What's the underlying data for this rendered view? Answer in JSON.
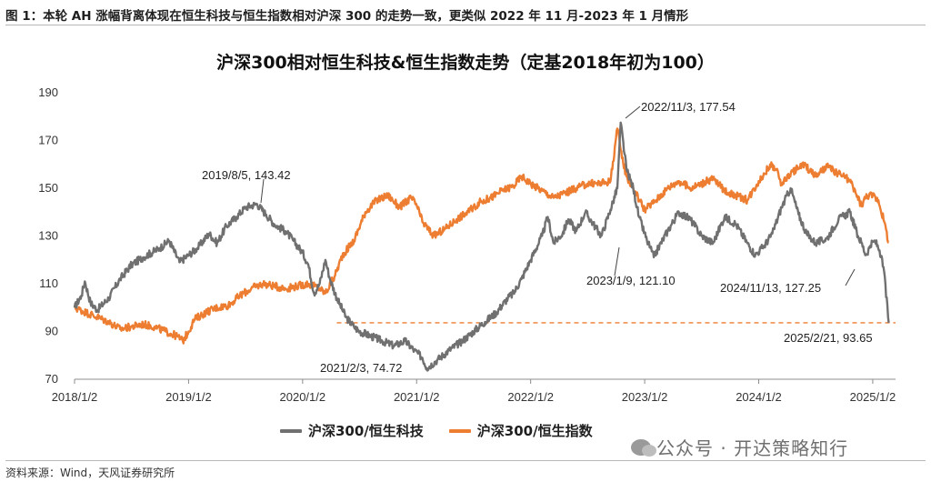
{
  "caption": "图 1：本轮 AH 涨幅背离体现在恒生科技与恒生指数相对沪深 300 的走势一致，更类似 2022 年 11 月-2023 年 1 月情形",
  "watermark": "公众号 · 开达策略知行",
  "source": "资料来源：Wind，天风证券研究所",
  "colors": {
    "tech": "#707070",
    "hsi": "#ED7D31",
    "refline": "#ED7D31"
  },
  "chart_data": {
    "type": "line",
    "title": "沪深300相对恒生科技&恒生指数走势（定基2018年初为100）",
    "ylim": [
      70,
      190
    ],
    "yticks": [
      70,
      90,
      110,
      130,
      150,
      170,
      190
    ],
    "xlim": [
      2018.0,
      2025.2
    ],
    "xticks": [
      {
        "label": "2018/1/2",
        "x": 2018.0
      },
      {
        "label": "2019/1/2",
        "x": 2019.0
      },
      {
        "label": "2020/1/2",
        "x": 2020.0
      },
      {
        "label": "2021/1/2",
        "x": 2021.0
      },
      {
        "label": "2022/1/2",
        "x": 2022.0
      },
      {
        "label": "2023/1/2",
        "x": 2023.0
      },
      {
        "label": "2024/1/2",
        "x": 2024.0
      },
      {
        "label": "2025/1/2",
        "x": 2025.0
      }
    ],
    "reference_line": {
      "y": 93.65,
      "x_from": 2020.3,
      "x_to": 2025.2
    },
    "series": [
      {
        "name": "沪深300/恒生科技",
        "color": "#707070",
        "x": [
          2018.0,
          2018.06,
          2018.09,
          2018.14,
          2018.2,
          2018.3,
          2018.4,
          2018.5,
          2018.6,
          2018.75,
          2018.83,
          2018.92,
          2019.0,
          2019.08,
          2019.18,
          2019.25,
          2019.33,
          2019.42,
          2019.5,
          2019.6,
          2019.68,
          2019.75,
          2019.85,
          2019.92,
          2020.0,
          2020.05,
          2020.1,
          2020.15,
          2020.2,
          2020.24,
          2020.3,
          2020.38,
          2020.45,
          2020.5,
          2020.6,
          2020.7,
          2020.8,
          2020.9,
          2020.98,
          2021.05,
          2021.09,
          2021.18,
          2021.28,
          2021.4,
          2021.5,
          2021.6,
          2021.7,
          2021.8,
          2021.85,
          2021.92,
          2022.0,
          2022.1,
          2022.15,
          2022.2,
          2022.28,
          2022.33,
          2022.4,
          2022.48,
          2022.55,
          2022.62,
          2022.7,
          2022.76,
          2022.79,
          2022.84,
          2022.9,
          2022.95,
          2023.02,
          2023.05,
          2023.08,
          2023.12,
          2023.2,
          2023.3,
          2023.4,
          2023.5,
          2023.6,
          2023.7,
          2023.8,
          2023.9,
          2023.97,
          2024.05,
          2024.12,
          2024.2,
          2024.28,
          2024.35,
          2024.42,
          2024.5,
          2024.6,
          2024.7,
          2024.8,
          2024.85,
          2024.87,
          2024.9,
          2024.94,
          2024.98,
          2025.02,
          2025.06,
          2025.1,
          2025.14
        ],
        "values": [
          100,
          105,
          111,
          102,
          99,
          104,
          112,
          118,
          121,
          125,
          128,
          119,
          122,
          125,
          131,
          127,
          134,
          138,
          142,
          143.4,
          139,
          135,
          132,
          128,
          123,
          118,
          106,
          110,
          120,
          112,
          104,
          96,
          92,
          90,
          88,
          86,
          84,
          86,
          82,
          79,
          74.7,
          78,
          82,
          86,
          90,
          94,
          98,
          104,
          106,
          112,
          120,
          130,
          138,
          127,
          131,
          137,
          132,
          140,
          135,
          130,
          141,
          150,
          177.5,
          158,
          150,
          138,
          128,
          125,
          121.1,
          125,
          132,
          140,
          137,
          130,
          127,
          138,
          135,
          127,
          122,
          126,
          131,
          142,
          150,
          139,
          131,
          127,
          129,
          137,
          140,
          133,
          130,
          127.3,
          122,
          126,
          128,
          124,
          115,
          93.65
        ]
      },
      {
        "name": "沪深300/恒生指数",
        "color": "#ED7D31",
        "x": [
          2018.0,
          2018.1,
          2018.2,
          2018.3,
          2018.4,
          2018.5,
          2018.6,
          2018.7,
          2018.8,
          2018.9,
          2018.95,
          2019.0,
          2019.05,
          2019.15,
          2019.25,
          2019.35,
          2019.45,
          2019.55,
          2019.65,
          2019.75,
          2019.85,
          2019.95,
          2020.05,
          2020.15,
          2020.2,
          2020.28,
          2020.35,
          2020.45,
          2020.55,
          2020.65,
          2020.75,
          2020.85,
          2020.95,
          2021.0,
          2021.05,
          2021.15,
          2021.25,
          2021.35,
          2021.45,
          2021.55,
          2021.65,
          2021.75,
          2021.85,
          2021.92,
          2022.0,
          2022.1,
          2022.2,
          2022.3,
          2022.4,
          2022.5,
          2022.6,
          2022.7,
          2022.76,
          2022.79,
          2022.84,
          2022.9,
          2023.0,
          2023.1,
          2023.2,
          2023.3,
          2023.4,
          2023.5,
          2023.6,
          2023.7,
          2023.8,
          2023.9,
          2024.0,
          2024.05,
          2024.1,
          2024.15,
          2024.2,
          2024.3,
          2024.4,
          2024.5,
          2024.6,
          2024.7,
          2024.75,
          2024.8,
          2024.85,
          2024.9,
          2024.95,
          2025.0,
          2025.05,
          2025.1,
          2025.14
        ],
        "values": [
          100,
          98,
          96,
          94,
          91,
          92,
          93,
          92,
          90,
          88,
          86,
          90,
          95,
          98,
          100,
          101,
          105,
          108,
          110,
          109,
          108,
          109,
          110,
          108,
          106,
          113,
          122,
          128,
          140,
          145,
          147,
          142,
          146,
          143,
          136,
          130,
          133,
          137,
          140,
          144,
          146,
          149,
          151,
          155,
          152,
          149,
          146,
          148,
          150,
          152,
          152,
          153,
          175,
          166,
          155,
          150,
          141,
          145,
          150,
          153,
          150,
          152,
          154,
          149,
          147,
          145,
          153,
          156,
          160,
          158,
          152,
          157,
          160,
          155,
          159,
          156,
          155,
          153,
          148,
          143,
          147,
          147,
          145,
          136,
          127.25
        ]
      }
    ],
    "annotations": [
      {
        "text": "2019/8/5, 143.42",
        "x": 2019.59,
        "y": 143.42
      },
      {
        "text": "2021/2/3, 74.72",
        "x": 2021.09,
        "y": 74.72
      },
      {
        "text": "2022/11/3, 177.54",
        "x": 2022.84,
        "y": 177.54
      },
      {
        "text": "2023/1/9, 121.10",
        "x": 2023.02,
        "y": 121.1
      },
      {
        "text": "2024/11/13, 127.25",
        "x": 2024.87,
        "y": 127.25
      },
      {
        "text": "2025/2/21, 93.65",
        "x": 2025.14,
        "y": 93.65
      }
    ]
  }
}
